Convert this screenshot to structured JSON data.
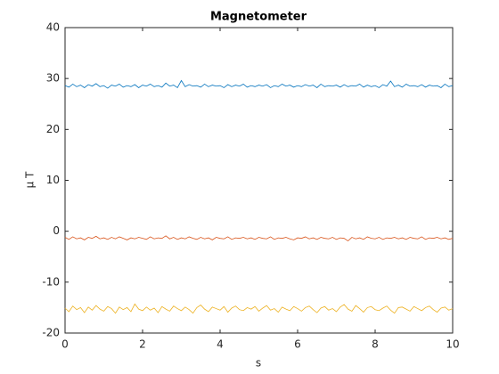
{
  "chart_data": {
    "type": "line",
    "title": "Magnetometer",
    "xlabel": "s",
    "ylabel": "μ T",
    "xlim": [
      0,
      10
    ],
    "ylim": [
      -20,
      40
    ],
    "xticks": [
      0,
      2,
      4,
      6,
      8,
      10
    ],
    "yticks": [
      -20,
      -10,
      0,
      10,
      20,
      30,
      40
    ],
    "x": [
      0,
      0.1,
      0.2,
      0.3,
      0.4,
      0.5,
      0.6,
      0.7,
      0.8,
      0.9,
      1,
      1.1,
      1.2,
      1.3,
      1.4,
      1.5,
      1.6,
      1.7,
      1.8,
      1.9,
      2,
      2.1,
      2.2,
      2.3,
      2.4,
      2.5,
      2.6,
      2.7,
      2.8,
      2.9,
      3,
      3.1,
      3.2,
      3.3,
      3.4,
      3.5,
      3.6,
      3.7,
      3.8,
      3.9,
      4,
      4.1,
      4.2,
      4.3,
      4.4,
      4.5,
      4.6,
      4.7,
      4.8,
      4.9,
      5,
      5.1,
      5.2,
      5.3,
      5.4,
      5.5,
      5.6,
      5.7,
      5.8,
      5.9,
      6,
      6.1,
      6.2,
      6.3,
      6.4,
      6.5,
      6.6,
      6.7,
      6.8,
      6.9,
      7,
      7.1,
      7.2,
      7.3,
      7.4,
      7.5,
      7.6,
      7.7,
      7.8,
      7.9,
      8,
      8.1,
      8.2,
      8.3,
      8.4,
      8.5,
      8.6,
      8.7,
      8.8,
      8.9,
      9,
      9.1,
      9.2,
      9.3,
      9.4,
      9.5,
      9.6,
      9.7,
      9.8,
      9.9,
      10
    ],
    "series": [
      {
        "color": "#0072bd",
        "values": [
          28.6,
          28.3,
          28.9,
          28.4,
          28.7,
          28.2,
          28.8,
          28.5,
          29.0,
          28.4,
          28.6,
          28.1,
          28.7,
          28.5,
          28.9,
          28.3,
          28.6,
          28.4,
          28.8,
          28.2,
          28.7,
          28.5,
          28.9,
          28.4,
          28.6,
          28.3,
          29.1,
          28.5,
          28.7,
          28.2,
          29.6,
          28.4,
          28.8,
          28.5,
          28.6,
          28.3,
          28.9,
          28.4,
          28.7,
          28.5,
          28.6,
          28.2,
          28.8,
          28.4,
          28.7,
          28.5,
          28.9,
          28.3,
          28.6,
          28.4,
          28.7,
          28.5,
          28.8,
          28.2,
          28.6,
          28.4,
          28.9,
          28.5,
          28.7,
          28.3,
          28.6,
          28.4,
          28.8,
          28.5,
          28.7,
          28.2,
          28.9,
          28.4,
          28.6,
          28.5,
          28.7,
          28.3,
          28.8,
          28.4,
          28.6,
          28.5,
          28.9,
          28.3,
          28.7,
          28.4,
          28.6,
          28.2,
          28.8,
          28.5,
          29.5,
          28.4,
          28.7,
          28.3,
          28.9,
          28.5,
          28.6,
          28.4,
          28.8,
          28.3,
          28.7,
          28.5,
          28.6,
          28.2,
          28.9,
          28.4,
          28.6
        ]
      },
      {
        "color": "#d95319",
        "values": [
          -1.2,
          -1.6,
          -1.1,
          -1.5,
          -1.3,
          -1.7,
          -1.2,
          -1.4,
          -1.0,
          -1.5,
          -1.3,
          -1.6,
          -1.2,
          -1.5,
          -1.1,
          -1.4,
          -1.7,
          -1.3,
          -1.5,
          -1.2,
          -1.4,
          -1.6,
          -1.1,
          -1.5,
          -1.3,
          -1.4,
          -0.9,
          -1.5,
          -1.2,
          -1.6,
          -1.3,
          -1.5,
          -1.1,
          -1.4,
          -1.6,
          -1.2,
          -1.5,
          -1.3,
          -1.7,
          -1.2,
          -1.4,
          -1.5,
          -1.1,
          -1.6,
          -1.3,
          -1.4,
          -1.2,
          -1.5,
          -1.3,
          -1.6,
          -1.2,
          -1.4,
          -1.5,
          -1.1,
          -1.6,
          -1.3,
          -1.4,
          -1.2,
          -1.5,
          -1.7,
          -1.3,
          -1.4,
          -1.1,
          -1.5,
          -1.3,
          -1.6,
          -1.2,
          -1.4,
          -1.5,
          -1.2,
          -1.6,
          -1.3,
          -1.4,
          -1.9,
          -1.2,
          -1.5,
          -1.3,
          -1.6,
          -1.1,
          -1.4,
          -1.5,
          -1.2,
          -1.6,
          -1.3,
          -1.4,
          -1.2,
          -1.5,
          -1.3,
          -1.6,
          -1.2,
          -1.4,
          -1.5,
          -1.1,
          -1.6,
          -1.3,
          -1.4,
          -1.2,
          -1.5,
          -1.3,
          -1.6,
          -1.4
        ]
      },
      {
        "color": "#edb120",
        "values": [
          -15.1,
          -15.8,
          -14.7,
          -15.4,
          -15.0,
          -16.0,
          -14.9,
          -15.5,
          -14.6,
          -15.3,
          -15.7,
          -14.8,
          -15.2,
          -16.1,
          -14.9,
          -15.4,
          -15.0,
          -15.8,
          -14.3,
          -15.3,
          -15.6,
          -14.9,
          -15.5,
          -15.1,
          -16.0,
          -14.8,
          -15.3,
          -15.7,
          -14.7,
          -15.2,
          -15.6,
          -14.9,
          -15.4,
          -16.1,
          -15.0,
          -14.5,
          -15.3,
          -15.8,
          -14.9,
          -15.2,
          -15.5,
          -14.8,
          -15.9,
          -15.1,
          -14.7,
          -15.4,
          -15.6,
          -15.0,
          -15.3,
          -14.8,
          -15.7,
          -15.1,
          -14.6,
          -15.5,
          -15.2,
          -15.9,
          -14.9,
          -15.3,
          -15.6,
          -14.8,
          -15.2,
          -15.7,
          -15.0,
          -14.7,
          -15.4,
          -16.0,
          -15.1,
          -14.8,
          -15.5,
          -15.2,
          -15.8,
          -14.9,
          -14.4,
          -15.3,
          -15.7,
          -14.6,
          -15.2,
          -15.9,
          -15.0,
          -14.8,
          -15.4,
          -15.6,
          -15.1,
          -14.7,
          -15.5,
          -16.1,
          -15.0,
          -14.9,
          -15.3,
          -15.7,
          -14.8,
          -15.2,
          -15.6,
          -15.0,
          -14.7,
          -15.4,
          -15.9,
          -15.1,
          -14.9,
          -15.5,
          -15.2
        ]
      }
    ]
  }
}
